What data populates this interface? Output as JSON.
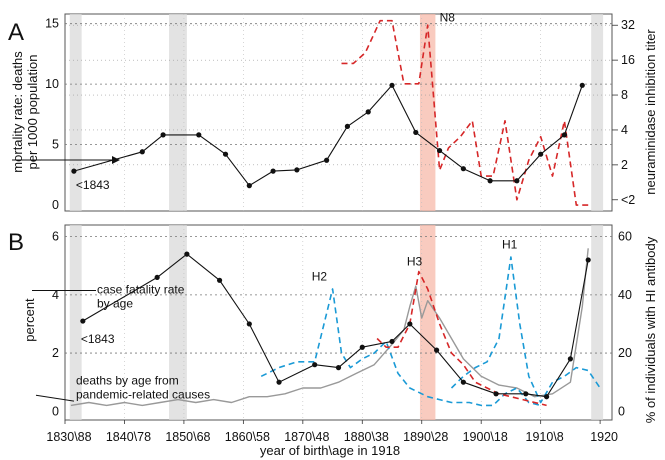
{
  "chart_data": [
    {
      "type": "line",
      "panel_label": "A",
      "ylabel": "mortality rate: deaths\nper 1000 population",
      "ylabel_right": "neuraminidase inhibition titer",
      "xlim": [
        1830,
        1922
      ],
      "ylim": [
        -0.5,
        15.8
      ],
      "yticks": [
        0,
        5,
        10,
        15
      ],
      "right_ticks": [
        {
          "label": "<2",
          "value": 1
        },
        {
          "label": "2",
          "value": 2
        },
        {
          "label": "4",
          "value": 4
        },
        {
          "label": "8",
          "value": 8
        },
        {
          "label": "16",
          "value": 16
        },
        {
          "label": "32",
          "value": 32
        }
      ],
      "grid": "dotted horizontal at 5, 10, 15",
      "series": [
        {
          "name": "mortality rate",
          "color": "#111111",
          "style": "solid-markers",
          "x": [
            1831.5,
            1843,
            1846.5,
            1852.5,
            1857,
            1861,
            1865,
            1869,
            1874,
            1877.5,
            1881,
            1885,
            1889,
            1893,
            1897,
            1901.5,
            1906,
            1910,
            1914,
            1917
          ],
          "y": [
            2.8,
            4.4,
            5.8,
            5.8,
            4.2,
            1.6,
            2.8,
            2.9,
            3.7,
            6.5,
            7.7,
            9.9,
            6.0,
            4.5,
            3.0,
            2.0,
            2.0,
            4.2,
            5.8,
            9.9
          ]
        },
        {
          "name": "N8",
          "color": "#d62728",
          "style": "dashed",
          "axis": "right",
          "x": [
            1876.5,
            1878.5,
            1880.5,
            1883,
            1885,
            1887,
            1888.5,
            1889.5,
            1891,
            1893,
            1894.5,
            1896.5,
            1898.5,
            1900,
            1902,
            1904,
            1906,
            1908,
            1910,
            1912,
            1914,
            1916,
            1918
          ],
          "y": [
            15.0,
            15.0,
            18.5,
            35.0,
            35.0,
            10.0,
            10.0,
            10.0,
            32.0,
            1.8,
            2.8,
            3.5,
            4.8,
            1.6,
            1.6,
            4.8,
            1.0,
            2.2,
            3.5,
            1.6,
            4.8,
            0.9,
            0.9
          ]
        }
      ],
      "annotations": [
        "<1843",
        "N8"
      ],
      "shaded_x": [
        [
          1830.8,
          1832.8
        ],
        [
          1847.5,
          1850.5
        ],
        [
          1889.7,
          1892.3
        ],
        [
          1918.5,
          1920.5
        ]
      ]
    },
    {
      "type": "line",
      "panel_label": "B",
      "ylabel": "percent",
      "ylabel_right": "% of individuals with HI antibody",
      "xlabel": "year of birth\\age in 1918",
      "xlim": [
        1830,
        1922
      ],
      "ylim": [
        -0.3,
        6.4
      ],
      "yticks": [
        0,
        2,
        4,
        6
      ],
      "right_yticks": [
        0,
        20,
        40,
        60
      ],
      "xtick_labels": [
        "1830\\88",
        "1840\\78",
        "1850\\68",
        "1860\\58",
        "1870\\48",
        "1880\\38",
        "1890\\28",
        "1900\\18",
        "1910\\8",
        "1920"
      ],
      "xtick_values": [
        1830,
        1840,
        1850,
        1860,
        1870,
        1880,
        1890,
        1900,
        1910,
        1920
      ],
      "series": [
        {
          "name": "case fatality rate by age",
          "color": "#111111",
          "style": "solid-markers",
          "x": [
            1833,
            1845.5,
            1850.5,
            1856,
            1861,
            1866,
            1872,
            1876,
            1880,
            1885,
            1888,
            1892.5,
            1897,
            1902.5,
            1907.5,
            1911,
            1915,
            1918
          ],
          "y": [
            3.1,
            4.6,
            5.4,
            4.5,
            3.0,
            1.0,
            1.6,
            1.5,
            2.2,
            2.4,
            3.0,
            2.1,
            1.0,
            0.6,
            0.6,
            0.5,
            1.8,
            5.2
          ]
        },
        {
          "name": "deaths by age from pandemic-related causes",
          "color": "#999999",
          "style": "solid",
          "x": [
            1831,
            1834,
            1837,
            1840,
            1843,
            1846,
            1849,
            1852,
            1855,
            1858,
            1861,
            1864,
            1867,
            1870,
            1873,
            1876,
            1879,
            1882,
            1885,
            1887,
            1888,
            1889,
            1890,
            1891,
            1893,
            1895,
            1897,
            1900,
            1903,
            1906,
            1909,
            1912,
            1915,
            1917,
            1918
          ],
          "y": [
            0.2,
            0.3,
            0.2,
            0.3,
            0.2,
            0.3,
            0.4,
            0.3,
            0.4,
            0.3,
            0.5,
            0.5,
            0.6,
            0.8,
            0.8,
            1.0,
            1.3,
            1.6,
            2.3,
            2.8,
            3.6,
            4.3,
            3.2,
            3.8,
            3.2,
            2.5,
            1.8,
            1.2,
            0.9,
            0.8,
            0.5,
            0.6,
            1.0,
            3.6,
            5.6
          ]
        },
        {
          "name": "H2",
          "color": "#1a9ad6",
          "style": "dashed",
          "axis": "right",
          "x": [
            1863,
            1866,
            1869,
            1872,
            1875,
            1876.5,
            1878,
            1880,
            1882,
            1884,
            1886,
            1888,
            1891,
            1893,
            1895,
            1898,
            1900,
            1902,
            1904,
            1906,
            1908,
            1910
          ],
          "y": [
            12,
            15,
            17,
            17,
            42,
            20,
            15,
            18,
            20,
            24,
            13,
            8,
            5,
            4,
            3,
            3,
            2,
            2,
            6,
            8,
            3,
            2
          ]
        },
        {
          "name": "H3",
          "color": "#d62728",
          "style": "dashed",
          "axis": "right",
          "x": [
            1882.5,
            1884,
            1886,
            1888,
            1889.5,
            1891,
            1893,
            1895,
            1897,
            1899,
            1901,
            1903,
            1905,
            1907,
            1909,
            1911
          ],
          "y": [
            25,
            22,
            22,
            30,
            48,
            42,
            30,
            20,
            16,
            10,
            8,
            6,
            5,
            4,
            3,
            2
          ]
        },
        {
          "name": "H1",
          "color": "#1a9ad6",
          "style": "dashed",
          "axis": "right",
          "x": [
            1895,
            1897,
            1899,
            1901,
            1903,
            1905,
            1906.5,
            1908,
            1910,
            1912,
            1914,
            1916,
            1918,
            1920
          ],
          "y": [
            8,
            12,
            15,
            17,
            25,
            53,
            30,
            12,
            3,
            10,
            12,
            15,
            14,
            8
          ]
        }
      ],
      "annotations": [
        "case fatality rate\nby age",
        "<1843",
        "H2",
        "H3",
        "H1",
        "deaths by age from\npandemic-related causes"
      ],
      "shaded_x": [
        [
          1830.8,
          1832.8
        ],
        [
          1847.5,
          1850.5
        ],
        [
          1889.7,
          1892.3
        ],
        [
          1918.5,
          1920.5
        ]
      ]
    }
  ]
}
